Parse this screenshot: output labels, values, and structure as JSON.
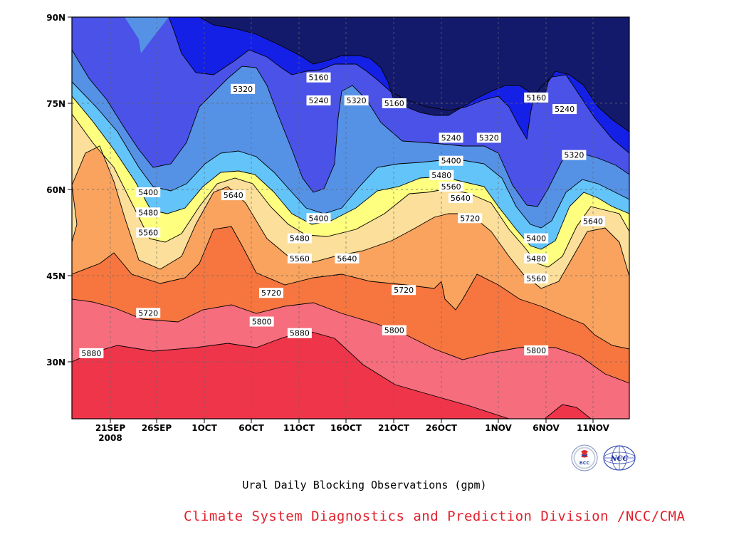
{
  "chart_data": {
    "type": "contour",
    "title": "Ural Daily Blocking Observations (gpm)",
    "y_ticks": [
      "90N",
      "75N",
      "60N",
      "45N",
      "30N"
    ],
    "x_ticks": [
      "21SEP",
      "26SEP",
      "1OCT",
      "6OCT",
      "11OCT",
      "16OCT",
      "21OCT",
      "26OCT",
      "1NOV",
      "6NOV",
      "11NOV"
    ],
    "x_year_label": "2008",
    "levels": [
      5160,
      5240,
      5320,
      5400,
      5480,
      5560,
      5640,
      5720,
      5800,
      5880
    ],
    "contour_labels": [
      {
        "value": "5160",
        "date": "13OCT",
        "lat": 79.5
      },
      {
        "value": "5240",
        "date": "13OCT",
        "lat": 75.5
      },
      {
        "value": "5320",
        "date": "5OCT",
        "lat": 77.5
      },
      {
        "value": "5320",
        "date": "17OCT",
        "lat": 75.5
      },
      {
        "value": "5160",
        "date": "21OCT",
        "lat": 75
      },
      {
        "value": "5240",
        "date": "27OCT",
        "lat": 69
      },
      {
        "value": "5320",
        "date": "31OCT",
        "lat": 69
      },
      {
        "value": "5160",
        "date": "5NOV",
        "lat": 76
      },
      {
        "value": "5240",
        "date": "8NOV",
        "lat": 74
      },
      {
        "value": "5320",
        "date": "9NOV",
        "lat": 66
      },
      {
        "value": "5400",
        "date": "27OCT",
        "lat": 65
      },
      {
        "value": "5480",
        "date": "26OCT",
        "lat": 62.5
      },
      {
        "value": "5560",
        "date": "27OCT",
        "lat": 60.5
      },
      {
        "value": "5640",
        "date": "28OCT",
        "lat": 58.5
      },
      {
        "value": "5720",
        "date": "29OCT",
        "lat": 55
      },
      {
        "value": "5400",
        "date": "25SEP",
        "lat": 59.5
      },
      {
        "value": "5480",
        "date": "25SEP",
        "lat": 56
      },
      {
        "value": "5560",
        "date": "25SEP",
        "lat": 52.5
      },
      {
        "value": "5640",
        "date": "4OCT",
        "lat": 59
      },
      {
        "value": "5400",
        "date": "13OCT",
        "lat": 55
      },
      {
        "value": "5480",
        "date": "11OCT",
        "lat": 51.5
      },
      {
        "value": "5560",
        "date": "11OCT",
        "lat": 48
      },
      {
        "value": "5640",
        "date": "16OCT",
        "lat": 48
      },
      {
        "value": "5400",
        "date": "5NOV",
        "lat": 51.5
      },
      {
        "value": "5480",
        "date": "5NOV",
        "lat": 48
      },
      {
        "value": "5560",
        "date": "5NOV",
        "lat": 44.5
      },
      {
        "value": "5640",
        "date": "11NOV",
        "lat": 54.5
      },
      {
        "value": "5720",
        "date": "25SEP",
        "lat": 38.5
      },
      {
        "value": "5720",
        "date": "8OCT",
        "lat": 42
      },
      {
        "value": "5720",
        "date": "22OCT",
        "lat": 42.5
      },
      {
        "value": "5800",
        "date": "7OCT",
        "lat": 37
      },
      {
        "value": "5800",
        "date": "21OCT",
        "lat": 35.5
      },
      {
        "value": "5800",
        "date": "5NOV",
        "lat": 32
      },
      {
        "value": "5880",
        "date": "19SEP",
        "lat": 31.5
      },
      {
        "value": "5880",
        "date": "11OCT",
        "lat": 35
      }
    ]
  },
  "caption": "Ural Daily Blocking Observations (gpm)",
  "credit": "Climate System Diagnostics and Prediction Division /NCC/CMA",
  "logos": {
    "bcc_text": "BCC",
    "ncc_text": "NCC"
  },
  "colors": {
    "band_lt5160": "#141a6b",
    "band_5160": "#1520e6",
    "band_5240": "#4a52e8",
    "band_5320": "#5592e6",
    "band_5400": "#63c4fa",
    "band_5480": "#ffff7f",
    "band_5560": "#fbdf9a",
    "band_5640": "#f9a35e",
    "band_5720": "#f7763f",
    "band_5800": "#f66d7e",
    "band_5880": "#ef354a",
    "credit": "#e3202c"
  }
}
